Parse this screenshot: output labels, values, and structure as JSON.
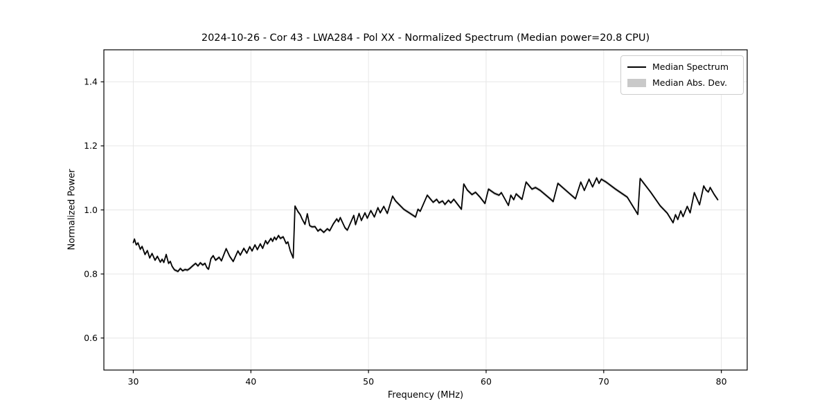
{
  "chart_data": {
    "type": "line",
    "title": "2024-10-26 - Cor 43 - LWA284 - Pol XX - Normalized Spectrum (Median power=20.8 CPU)",
    "xlabel": "Frequency (MHz)",
    "ylabel": "Normalized Power",
    "xlim": [
      27.5,
      82.2
    ],
    "ylim": [
      0.5,
      1.5
    ],
    "xticks": [
      30,
      40,
      50,
      60,
      70,
      80
    ],
    "yticks": [
      0.6,
      0.8,
      1.0,
      1.2,
      1.4
    ],
    "grid": true,
    "legend_position": "upper right",
    "median_power_cpu": 20.8,
    "series": [
      {
        "name": "Median Spectrum",
        "color": "#000000",
        "x": [
          30.0,
          30.1,
          30.25,
          30.4,
          30.6,
          30.75,
          31.0,
          31.2,
          31.4,
          31.6,
          31.85,
          32.05,
          32.3,
          32.45,
          32.6,
          32.8,
          33.0,
          33.15,
          33.3,
          33.5,
          33.8,
          34.0,
          34.2,
          34.4,
          34.6,
          34.8,
          35.1,
          35.3,
          35.5,
          35.7,
          35.9,
          36.1,
          36.25,
          36.4,
          36.6,
          36.8,
          37.0,
          37.3,
          37.5,
          37.9,
          38.2,
          38.5,
          38.9,
          39.1,
          39.4,
          39.65,
          39.9,
          40.1,
          40.35,
          40.55,
          40.8,
          41.0,
          41.25,
          41.4,
          41.7,
          41.85,
          42.0,
          42.15,
          42.35,
          42.5,
          42.75,
          43.0,
          43.15,
          43.35,
          43.6,
          43.75,
          44.0,
          44.2,
          44.35,
          44.6,
          44.8,
          45.0,
          45.2,
          45.45,
          45.7,
          45.9,
          46.2,
          46.5,
          46.7,
          47.0,
          47.3,
          47.45,
          47.6,
          48.0,
          48.2,
          48.75,
          48.9,
          49.2,
          49.4,
          49.7,
          49.9,
          50.2,
          50.5,
          50.8,
          51.0,
          51.3,
          51.6,
          52.05,
          52.3,
          53.0,
          53.5,
          54.0,
          54.2,
          54.4,
          55.0,
          55.5,
          55.8,
          56.0,
          56.3,
          56.5,
          56.8,
          57.0,
          57.25,
          57.9,
          58.1,
          58.4,
          58.8,
          59.1,
          59.5,
          59.9,
          60.2,
          60.7,
          61.1,
          61.3,
          61.9,
          62.1,
          62.35,
          62.55,
          63.05,
          63.4,
          63.9,
          64.2,
          64.6,
          65.5,
          65.7,
          66.1,
          67.0,
          67.6,
          68.05,
          68.35,
          68.75,
          69.05,
          69.4,
          69.6,
          69.8,
          70.2,
          71.0,
          72.0,
          72.9,
          73.1,
          74.0,
          74.8,
          75.4,
          75.9,
          76.1,
          76.3,
          76.55,
          76.75,
          77.1,
          77.35,
          77.7,
          78.15,
          78.5,
          78.7,
          78.9,
          79.05,
          79.4,
          79.7
        ],
        "y": [
          0.898,
          0.909,
          0.891,
          0.897,
          0.877,
          0.886,
          0.861,
          0.873,
          0.85,
          0.864,
          0.843,
          0.855,
          0.837,
          0.846,
          0.836,
          0.861,
          0.833,
          0.839,
          0.824,
          0.813,
          0.808,
          0.817,
          0.81,
          0.814,
          0.812,
          0.817,
          0.827,
          0.833,
          0.825,
          0.835,
          0.828,
          0.833,
          0.82,
          0.815,
          0.848,
          0.857,
          0.843,
          0.852,
          0.841,
          0.879,
          0.855,
          0.839,
          0.872,
          0.859,
          0.88,
          0.865,
          0.885,
          0.872,
          0.891,
          0.876,
          0.894,
          0.88,
          0.904,
          0.894,
          0.911,
          0.902,
          0.915,
          0.907,
          0.92,
          0.911,
          0.916,
          0.895,
          0.9,
          0.872,
          0.85,
          1.012,
          0.995,
          0.985,
          0.972,
          0.955,
          0.988,
          0.951,
          0.947,
          0.948,
          0.934,
          0.94,
          0.93,
          0.941,
          0.935,
          0.956,
          0.972,
          0.963,
          0.976,
          0.944,
          0.937,
          0.983,
          0.954,
          0.989,
          0.967,
          0.991,
          0.974,
          0.998,
          0.978,
          1.007,
          0.991,
          1.011,
          0.989,
          1.043,
          1.028,
          1.002,
          0.99,
          0.978,
          1.002,
          0.996,
          1.046,
          1.024,
          1.033,
          1.022,
          1.028,
          1.017,
          1.03,
          1.022,
          1.033,
          1.002,
          1.081,
          1.062,
          1.048,
          1.055,
          1.039,
          1.02,
          1.065,
          1.052,
          1.046,
          1.054,
          1.014,
          1.046,
          1.032,
          1.05,
          1.033,
          1.087,
          1.065,
          1.07,
          1.061,
          1.033,
          1.026,
          1.083,
          1.054,
          1.035,
          1.087,
          1.061,
          1.096,
          1.072,
          1.1,
          1.083,
          1.096,
          1.087,
          1.065,
          1.04,
          0.986,
          1.098,
          1.055,
          1.013,
          0.99,
          0.96,
          0.985,
          0.97,
          0.997,
          0.979,
          1.011,
          0.991,
          1.054,
          1.016,
          1.075,
          1.062,
          1.056,
          1.07,
          1.048,
          1.032
        ]
      },
      {
        "name": "Median Abs. Dev.",
        "color": "#c9c9c9",
        "band_halfwidth": 0.005
      }
    ]
  },
  "legend": [
    {
      "label": "Median Spectrum",
      "swatch": "line"
    },
    {
      "label": "Median Abs. Dev.",
      "swatch": "patch"
    }
  ],
  "colors": {
    "line": "#000000",
    "grid": "#e6e6e6",
    "spine": "#000000",
    "mad_fill": "#c9c9c9",
    "legend_border": "#cccccc",
    "background": "#ffffff"
  }
}
